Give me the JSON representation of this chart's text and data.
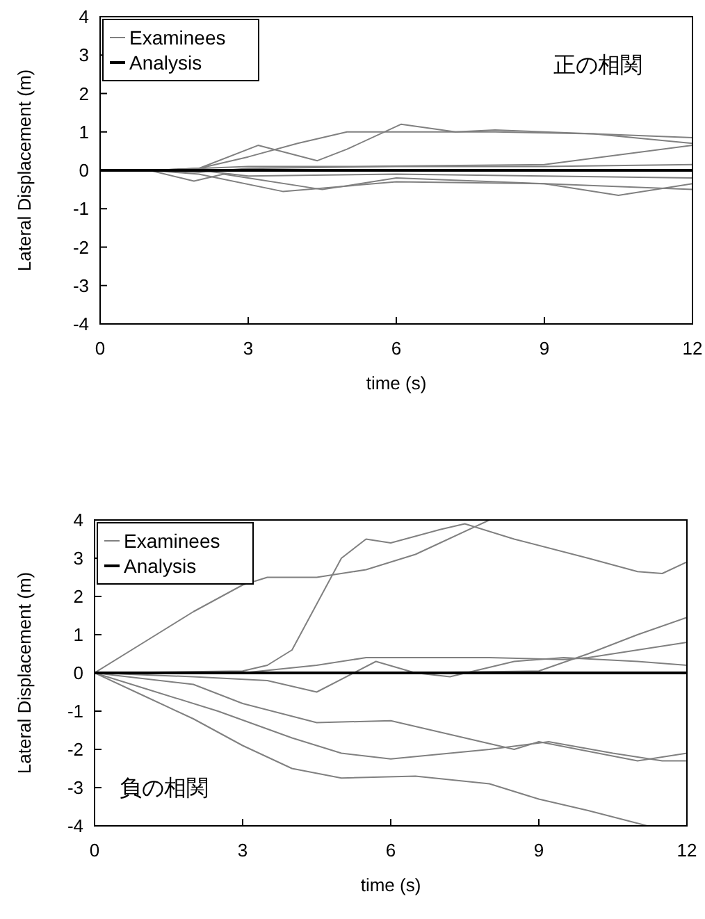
{
  "chart_data": [
    {
      "type": "line",
      "xlabel": "time (s)",
      "ylabel": "Lateral Displacement (m)",
      "xlim": [
        0,
        12
      ],
      "ylim": [
        -4,
        4
      ],
      "xticks": [
        0,
        3,
        6,
        9,
        12
      ],
      "yticks": [
        -4,
        -3,
        -2,
        -1,
        0,
        1,
        2,
        3,
        4
      ],
      "grid": false,
      "legend": "top left",
      "marker": "none",
      "line_style": "solid",
      "annotations": [
        "正の相関"
      ],
      "series": [
        {
          "name": "Examinees",
          "color": "#808080",
          "x": [
            0,
            1,
            2,
            3,
            4,
            5,
            6,
            8,
            10,
            12
          ],
          "values": [
            0,
            0,
            0.05,
            0.35,
            0.7,
            1.0,
            1.0,
            1.0,
            0.95,
            0.85
          ]
        },
        {
          "color": "#808080",
          "x": [
            0,
            1,
            2,
            3.2,
            4.4,
            5,
            6.1,
            7.2,
            8,
            10,
            12
          ],
          "values": [
            0,
            0,
            0.05,
            0.65,
            0.25,
            0.55,
            1.2,
            1.0,
            1.05,
            0.95,
            0.7
          ]
        },
        {
          "color": "#808080",
          "x": [
            0,
            1,
            2,
            3,
            5,
            9,
            12
          ],
          "values": [
            0,
            0,
            0.05,
            0.1,
            0.1,
            0.15,
            0.65
          ]
        },
        {
          "color": "#808080",
          "x": [
            0,
            1,
            2,
            3,
            6,
            9,
            12
          ],
          "values": [
            0,
            0,
            -0.05,
            0.05,
            0.1,
            0.1,
            0.15
          ]
        },
        {
          "color": "#808080",
          "x": [
            0,
            1,
            2,
            3.7,
            6,
            9,
            10.5,
            12
          ],
          "values": [
            0,
            0,
            -0.1,
            -0.55,
            -0.3,
            -0.35,
            -0.65,
            -0.35
          ]
        },
        {
          "color": "#808080",
          "x": [
            0,
            1,
            1.9,
            2.5,
            4.5,
            6,
            9,
            12
          ],
          "values": [
            0,
            0,
            -0.28,
            -0.1,
            -0.5,
            -0.2,
            -0.35,
            -0.5
          ]
        },
        {
          "color": "#808080",
          "x": [
            0,
            1,
            2,
            3,
            6,
            9,
            12
          ],
          "values": [
            0,
            0,
            0.0,
            -0.15,
            -0.1,
            -0.15,
            -0.2
          ]
        },
        {
          "name": "Analysis",
          "color": "#000000",
          "x": [
            0,
            12
          ],
          "values": [
            0,
            0
          ]
        }
      ]
    },
    {
      "type": "line",
      "xlabel": "time (s)",
      "ylabel": "Lateral Displacement (m)",
      "xlim": [
        0,
        12
      ],
      "ylim": [
        -4,
        4
      ],
      "xticks": [
        0,
        3,
        6,
        9,
        12
      ],
      "yticks": [
        -4,
        -3,
        -2,
        -1,
        0,
        1,
        2,
        3,
        4
      ],
      "grid": false,
      "legend": "top left",
      "marker": "none",
      "line_style": "solid",
      "annotations": [
        "負の相関"
      ],
      "series": [
        {
          "name": "Examinees",
          "color": "#808080",
          "x": [
            0,
            1,
            2,
            3,
            3.5,
            4.5,
            5.5,
            6.5,
            7,
            8
          ],
          "values": [
            0,
            0.8,
            1.6,
            2.3,
            2.5,
            2.5,
            2.7,
            3.1,
            3.4,
            4.0
          ]
        },
        {
          "color": "#808080",
          "x": [
            0,
            3,
            3.5,
            4,
            4.5,
            5,
            5.5,
            6,
            7,
            7.5,
            8.5,
            10,
            11,
            11.5,
            12
          ],
          "values": [
            0,
            0.05,
            0.2,
            0.6,
            1.8,
            3.0,
            3.5,
            3.4,
            3.75,
            3.9,
            3.5,
            3.0,
            2.65,
            2.6,
            2.9
          ]
        },
        {
          "color": "#808080",
          "x": [
            0,
            3,
            6,
            9,
            10,
            11,
            12
          ],
          "values": [
            0,
            0,
            0.0,
            0.05,
            0.5,
            1.0,
            1.45
          ]
        },
        {
          "color": "#808080",
          "x": [
            0,
            3,
            4.5,
            5.5,
            8,
            9.5,
            10,
            11,
            12
          ],
          "values": [
            0,
            0,
            0.2,
            0.4,
            0.4,
            0.35,
            0.4,
            0.6,
            0.8
          ]
        },
        {
          "color": "#808080",
          "x": [
            0,
            2,
            3.5,
            4.5,
            5.7,
            6.5,
            7.2,
            8.5,
            9.5,
            11,
            12
          ],
          "values": [
            0,
            -0.1,
            -0.2,
            -0.5,
            0.3,
            0.0,
            -0.1,
            0.3,
            0.4,
            0.3,
            0.2
          ]
        },
        {
          "color": "#808080",
          "x": [
            0,
            2,
            3,
            4.5,
            6,
            8.5,
            9,
            11,
            12
          ],
          "values": [
            0,
            -0.3,
            -0.8,
            -1.3,
            -1.25,
            -2.0,
            -1.8,
            -2.3,
            -2.1
          ]
        },
        {
          "color": "#808080",
          "x": [
            0,
            1,
            2.5,
            4,
            5,
            6,
            8,
            9.2,
            10.5,
            11.5,
            12
          ],
          "values": [
            0,
            -0.4,
            -1.0,
            -1.7,
            -2.1,
            -2.25,
            -2.0,
            -1.8,
            -2.1,
            -2.3,
            -2.3
          ]
        },
        {
          "color": "#808080",
          "x": [
            0,
            1,
            2,
            3,
            4,
            5,
            6.5,
            8,
            9,
            10,
            11.2
          ],
          "values": [
            0,
            -0.6,
            -1.2,
            -1.9,
            -2.5,
            -2.75,
            -2.7,
            -2.9,
            -3.3,
            -3.6,
            -4.0
          ]
        },
        {
          "name": "Analysis",
          "color": "#000000",
          "x": [
            0,
            12
          ],
          "values": [
            0,
            0
          ]
        }
      ]
    }
  ]
}
